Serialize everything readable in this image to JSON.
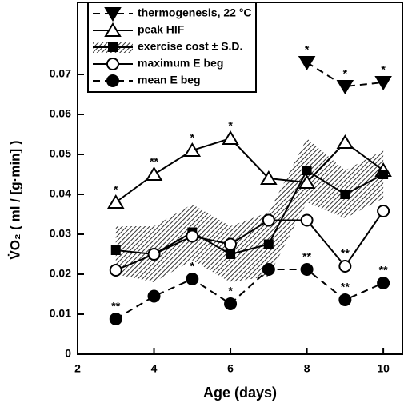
{
  "chart_data": {
    "type": "line",
    "x_label": "Age (days)",
    "y_label": "V̇O₂ ( ml / [g·min] )",
    "xlim": [
      2,
      10.5
    ],
    "ylim": [
      0,
      0.088
    ],
    "xticks": [
      2,
      4,
      6,
      8,
      10
    ],
    "yticks": [
      0,
      0.01,
      0.02,
      0.03,
      0.04,
      0.05,
      0.06,
      0.07
    ],
    "legend": "upper left",
    "series": [
      {
        "name": "thermogenesis, 22 °C",
        "color": "#000",
        "marker": "triangle-down",
        "filled": true,
        "dashed": true,
        "x": [
          8,
          9,
          10
        ],
        "values": [
          0.073,
          0.067,
          0.068
        ]
      },
      {
        "name": "peak HIF",
        "color": "#000",
        "marker": "triangle-up",
        "filled": false,
        "dashed": false,
        "x": [
          3,
          4,
          5,
          6,
          7,
          8,
          9,
          10
        ],
        "values": [
          0.038,
          0.045,
          0.051,
          0.054,
          0.044,
          0.043,
          0.053,
          0.046
        ]
      },
      {
        "name": "exercise cost ± S.D.",
        "color": "#000",
        "marker": "square",
        "filled": true,
        "dashed": false,
        "x": [
          3,
          4,
          5,
          6,
          7,
          8,
          9,
          10
        ],
        "values": [
          0.026,
          0.025,
          0.0305,
          0.025,
          0.0275,
          0.046,
          0.04,
          0.045
        ],
        "sd": [
          0.006,
          0.007,
          0.007,
          0.007,
          0.008,
          0.008,
          0.006,
          0.006
        ]
      },
      {
        "name": "maximum E beg",
        "color": "#000",
        "marker": "circle",
        "filled": false,
        "dashed": false,
        "x": [
          3,
          4,
          5,
          6,
          7,
          8,
          9,
          10
        ],
        "values": [
          0.021,
          0.025,
          0.0295,
          0.0275,
          0.0335,
          0.0335,
          0.022,
          0.0358
        ]
      },
      {
        "name": "mean E beg",
        "color": "#000",
        "marker": "circle",
        "filled": true,
        "dashed": true,
        "x": [
          3,
          4,
          5,
          6,
          7,
          8,
          9,
          10
        ],
        "values": [
          0.0088,
          0.0145,
          0.0188,
          0.0126,
          0.0212,
          0.0212,
          0.0136,
          0.0178
        ]
      }
    ],
    "annotations": [
      {
        "series": 0,
        "index": 0,
        "text": "*"
      },
      {
        "series": 0,
        "index": 1,
        "text": "*"
      },
      {
        "series": 0,
        "index": 2,
        "text": "*"
      },
      {
        "series": 1,
        "index": 0,
        "text": "*"
      },
      {
        "series": 1,
        "index": 1,
        "text": "**"
      },
      {
        "series": 1,
        "index": 2,
        "text": "*"
      },
      {
        "series": 1,
        "index": 3,
        "text": "*"
      },
      {
        "series": 3,
        "index": 6,
        "text": "**"
      },
      {
        "series": 4,
        "index": 0,
        "text": "**"
      },
      {
        "series": 4,
        "index": 2,
        "text": "*"
      },
      {
        "series": 4,
        "index": 3,
        "text": "*"
      },
      {
        "series": 4,
        "index": 5,
        "text": "**"
      },
      {
        "series": 4,
        "index": 6,
        "text": "**"
      },
      {
        "series": 4,
        "index": 7,
        "text": "**"
      }
    ]
  }
}
